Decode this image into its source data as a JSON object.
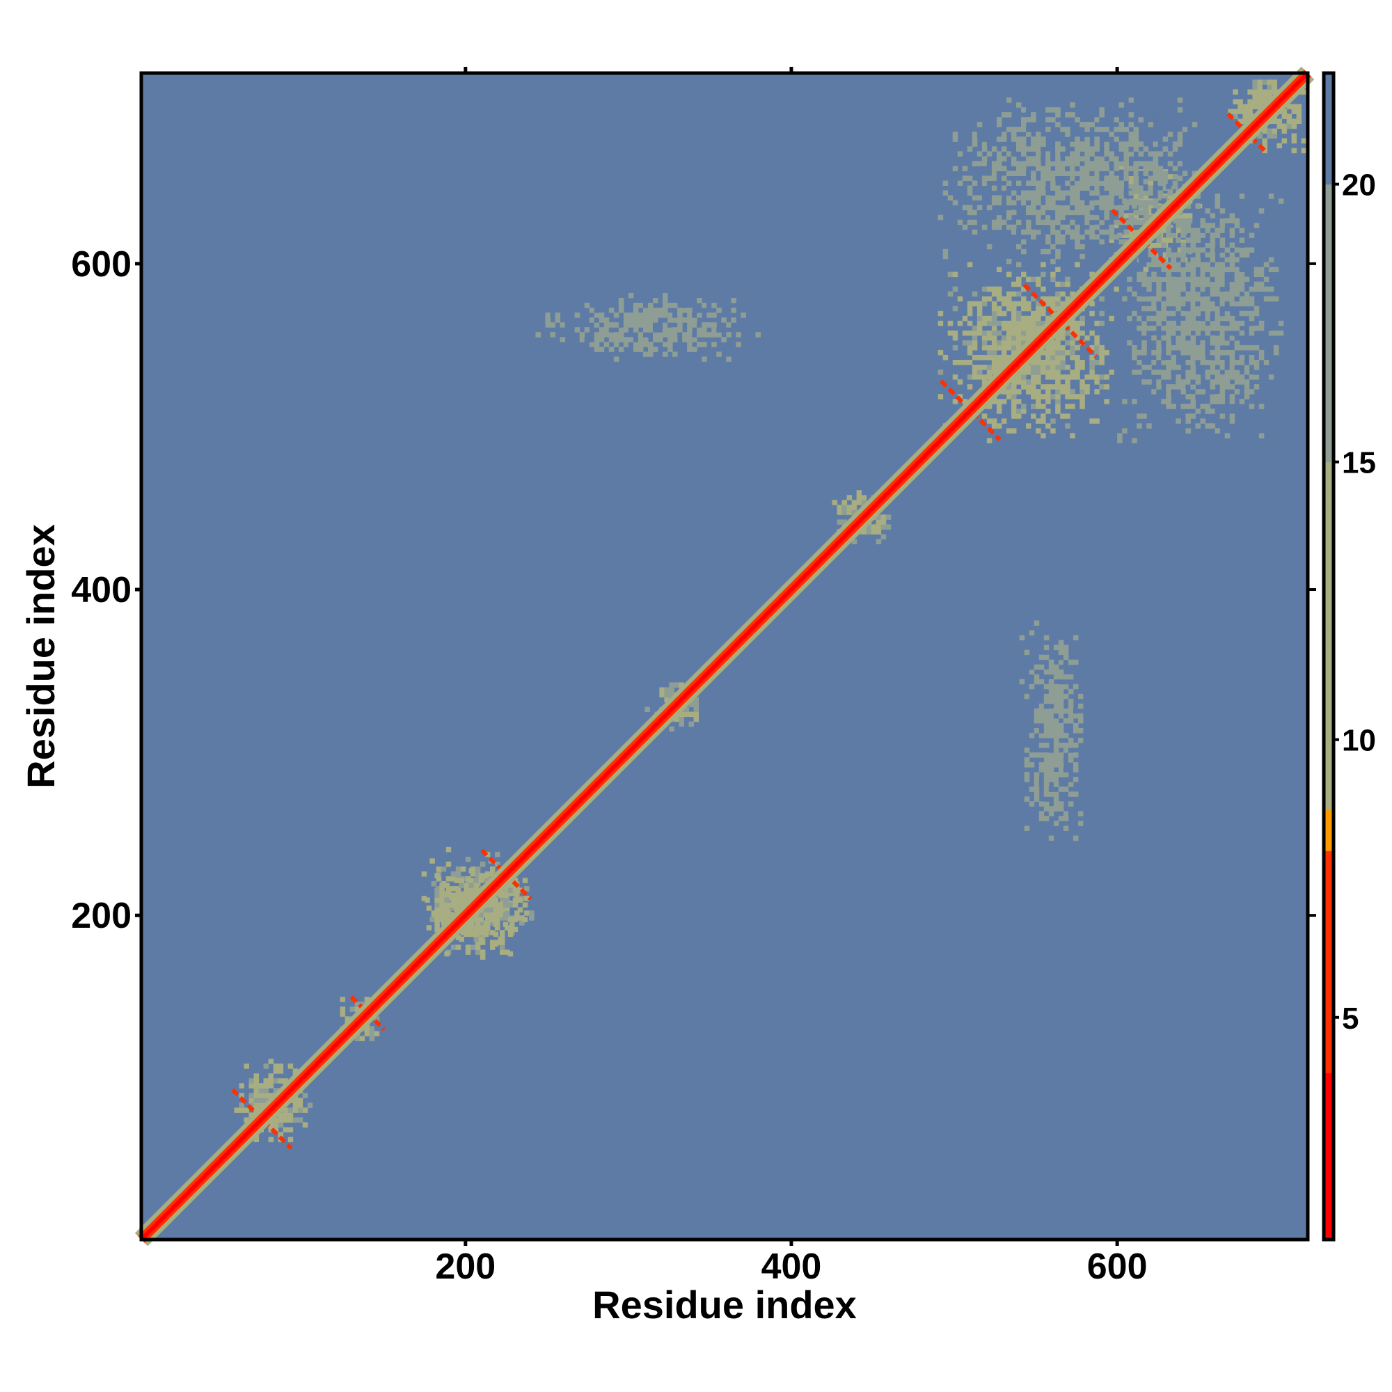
{
  "chart_data": {
    "type": "heatmap",
    "title": "",
    "xlabel": "Residue index",
    "ylabel": "Residue index",
    "xlim": [
      1,
      717
    ],
    "ylim": [
      1,
      717
    ],
    "x_ticks": [
      200,
      400,
      600
    ],
    "y_ticks": [
      200,
      400,
      600
    ],
    "colorbar": {
      "range": [
        1,
        22
      ],
      "ticks": [
        5,
        10,
        15,
        20
      ],
      "colors": {
        "low": "#ff0000",
        "mid_low": "#ff8c00",
        "mid": "#9aa58c",
        "high": "#5d7ba5",
        "background": "#0000ff"
      },
      "color_stops": [
        {
          "value": 1,
          "color": "#ff0000"
        },
        {
          "value": 4,
          "color": "#ff3000"
        },
        {
          "value": 8,
          "color": "#ff9900"
        },
        {
          "value": 8.6,
          "color": "#a8ad82"
        },
        {
          "value": 15,
          "color": "#8f9e95"
        },
        {
          "value": 20,
          "color": "#5d7ba5"
        },
        {
          "value": 22,
          "color": "#0000ff"
        }
      ]
    },
    "diagonal_value": 1,
    "background_value": 22,
    "contact_regions": [
      {
        "x": [
          55,
          105
        ],
        "y": [
          55,
          110
        ],
        "value": 14
      },
      {
        "x": [
          120,
          150
        ],
        "y": [
          120,
          150
        ],
        "value": 15
      },
      {
        "x": [
          170,
          240
        ],
        "y": [
          170,
          240
        ],
        "value": 14
      },
      {
        "x": [
          310,
          345
        ],
        "y": [
          310,
          345
        ],
        "value": 15
      },
      {
        "x": [
          425,
          460
        ],
        "y": [
          425,
          460
        ],
        "value": 15
      },
      {
        "x": [
          490,
          600
        ],
        "y": [
          490,
          600
        ],
        "value": 13
      },
      {
        "x": [
          595,
          650
        ],
        "y": [
          595,
          660
        ],
        "value": 14
      },
      {
        "x": [
          665,
          717
        ],
        "y": [
          665,
          717
        ],
        "value": 13
      },
      {
        "x": [
          540,
          580
        ],
        "y": [
          240,
          380
        ],
        "value": 18
      },
      {
        "x": [
          240,
          380
        ],
        "y": [
          540,
          580
        ],
        "value": 18
      },
      {
        "x": [
          490,
          650
        ],
        "y": [
          600,
          700
        ],
        "value": 18
      },
      {
        "x": [
          600,
          700
        ],
        "y": [
          490,
          650
        ],
        "value": 18
      },
      {
        "x": [
          175,
          240
        ],
        "y": [
          175,
          235
        ],
        "value": 13
      }
    ],
    "crossing_contacts": [
      {
        "center": 75,
        "half_width": 18
      },
      {
        "center": 140,
        "half_width": 10
      },
      {
        "center": 225,
        "half_width": 15
      },
      {
        "center": 510,
        "half_width": 18
      },
      {
        "center": 565,
        "half_width": 22
      },
      {
        "center": 615,
        "half_width": 18
      },
      {
        "center": 680,
        "half_width": 12
      }
    ]
  }
}
